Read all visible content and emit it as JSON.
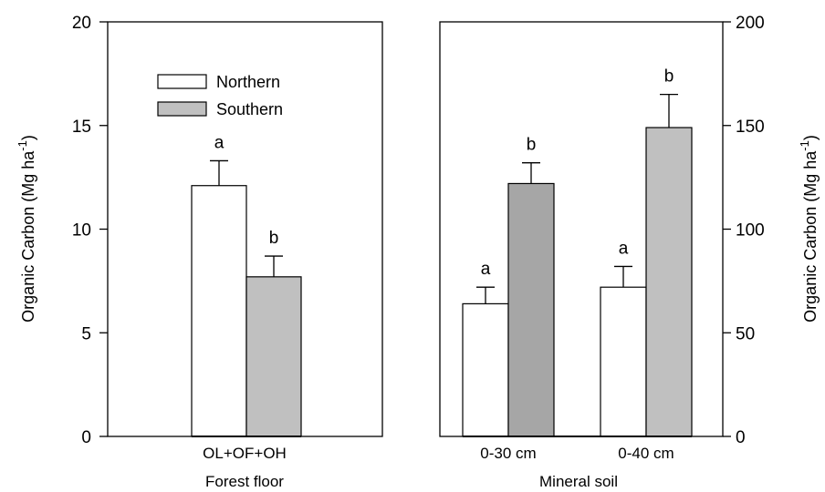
{
  "chart_data": [
    {
      "type": "bar",
      "panel": "left",
      "group_label": "Forest floor",
      "categories": [
        "OL+OF+OH"
      ],
      "ylabel": "Organic Carbon (Mg ha",
      "ylabel_sup": "-1",
      "ylabel_close": ")",
      "ylim": [
        0,
        20
      ],
      "yticks": [
        0,
        5,
        10,
        15,
        20
      ],
      "series": [
        {
          "name": "Northern",
          "color": "#ffffff",
          "values": [
            12.1
          ],
          "errors": [
            1.2
          ],
          "letters": [
            "a"
          ]
        },
        {
          "name": "Southern",
          "color": "#c0c0c0",
          "values": [
            7.7
          ],
          "errors": [
            1.0
          ],
          "letters": [
            "b"
          ]
        }
      ],
      "legend": {
        "position": "top-left",
        "entries": [
          "Northern",
          "Southern"
        ]
      }
    },
    {
      "type": "bar",
      "panel": "right",
      "group_label": "Mineral soil",
      "categories": [
        "0-30 cm",
        "0-40 cm"
      ],
      "ylabel": "Organic Carbon (Mg ha",
      "ylabel_sup": "-1",
      "ylabel_close": ")",
      "ylim": [
        0,
        200
      ],
      "yticks": [
        0,
        50,
        100,
        150,
        200
      ],
      "y_axis_side": "right",
      "series": [
        {
          "name": "Northern",
          "color": "#ffffff",
          "values": [
            64,
            72
          ],
          "errors": [
            8,
            10
          ],
          "letters": [
            "a",
            "a"
          ]
        },
        {
          "name": "Southern",
          "colors": [
            "#a6a6a6",
            "#c0c0c0"
          ],
          "values": [
            122,
            149
          ],
          "errors": [
            10,
            16
          ],
          "letters": [
            "b",
            "b"
          ]
        }
      ]
    }
  ]
}
